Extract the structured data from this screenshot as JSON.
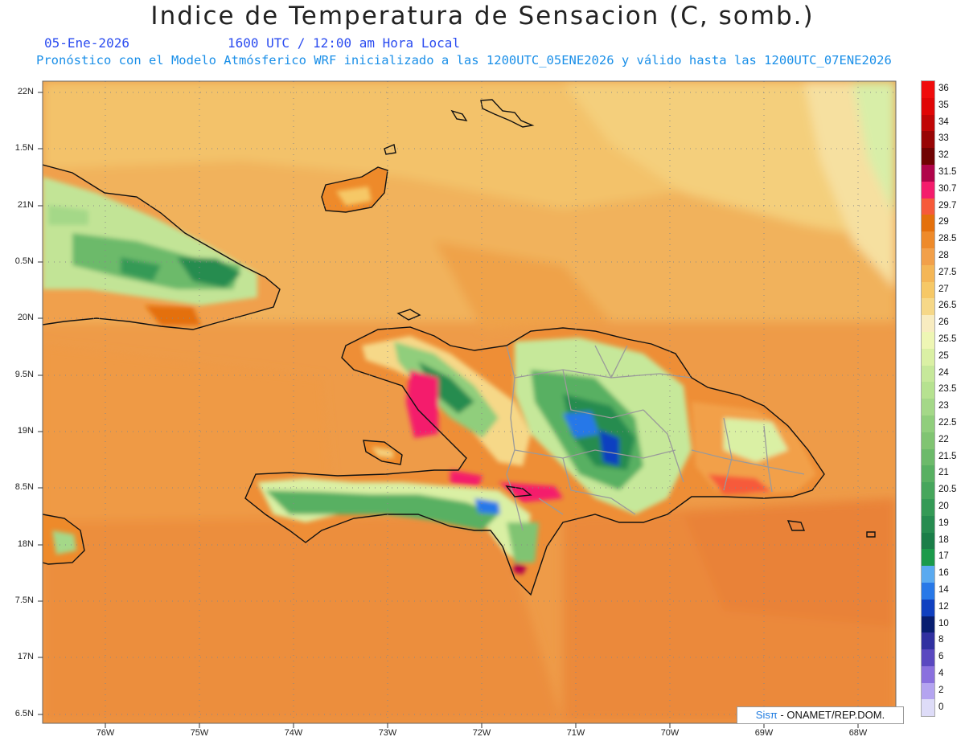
{
  "header": {
    "title": "Indice de Temperatura de Sensacion (C, somb.)",
    "date": "05-Ene-2026",
    "time": "1600 UTC / 12:00 am Hora Local",
    "model_line": "Pronóstico con el Modelo Atmósferico WRF inicializado a las 1200UTC_05ENE2026 y válido hasta las  1200UTC_07ENE2026"
  },
  "axes": {
    "lat_labels": [
      "22N",
      "1.5N",
      "21N",
      "0.5N",
      "20N",
      "9.5N",
      "19N",
      "8.5N",
      "18N",
      "7.5N",
      "17N",
      "6.5N"
    ],
    "lon_labels": [
      "76W",
      "75W",
      "74W",
      "73W",
      "72W",
      "71W",
      "70W",
      "69W",
      "68W"
    ]
  },
  "colorbar": {
    "levels": [
      "36",
      "35",
      "34",
      "33",
      "32",
      "31.5",
      "30.7",
      "29.7",
      "29",
      "28.5",
      "28",
      "27.5",
      "27",
      "26.5",
      "26",
      "25.5",
      "25",
      "24",
      "23.5",
      "23",
      "22.5",
      "22",
      "21.5",
      "21",
      "20.5",
      "20",
      "19",
      "18",
      "17",
      "16",
      "14",
      "12",
      "10",
      "8",
      "6",
      "4",
      "2",
      "0"
    ],
    "colors": [
      "#f00c0c",
      "#e00606",
      "#c00606",
      "#980404",
      "#700202",
      "#b0044a",
      "#f41c6c",
      "#f65a3a",
      "#e4700c",
      "#ee8a2a",
      "#f2a04a",
      "#f4b656",
      "#f6c866",
      "#f6d888",
      "#f8ecc0",
      "#eef6b4",
      "#daf0a4",
      "#c6e89a",
      "#b6e290",
      "#a4d888",
      "#90ce7c",
      "#80c472",
      "#6cba6a",
      "#58b062",
      "#46a65c",
      "#349a56",
      "#268c50",
      "#1a7e48",
      "#1b9a4a",
      "#5aaaf0",
      "#2878e8",
      "#1040c0",
      "#081e70",
      "#3030a0",
      "#5a48c0",
      "#8a70de",
      "#b4a4f0",
      "#dedcf8"
    ]
  },
  "credit": {
    "sis": "Sisπ",
    "org": " - ONAMET/REP.DOM."
  }
}
